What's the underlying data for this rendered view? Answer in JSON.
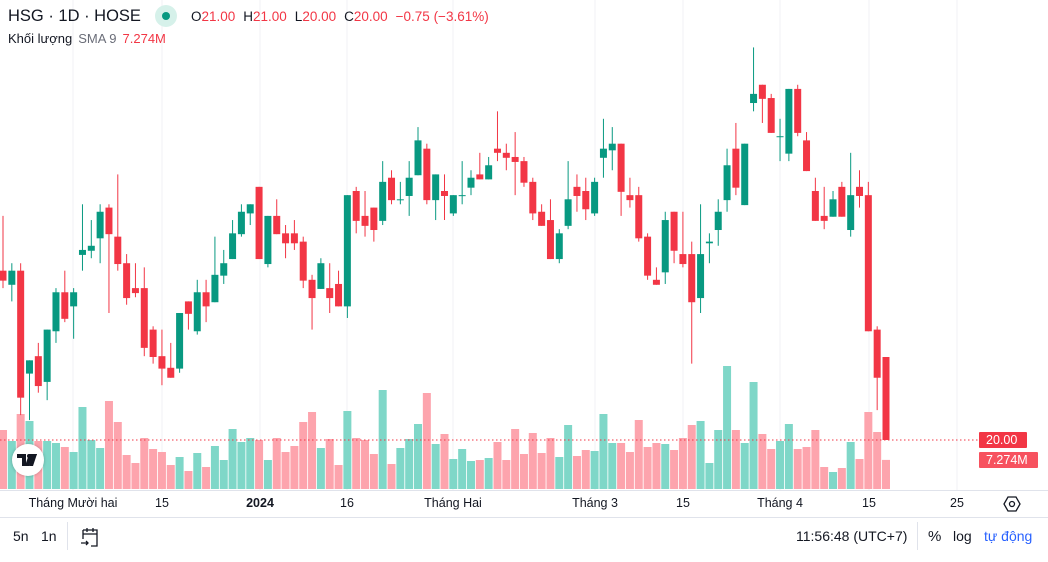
{
  "header": {
    "symbol": "HSG · 1D · HOSE",
    "o_label": "O",
    "o": "21.00",
    "h_label": "H",
    "h": "21.00",
    "l_label": "L",
    "l": "20.00",
    "c_label": "C",
    "c": "20.00",
    "change": "−0.75 (−3.61%)"
  },
  "volume_legend": {
    "label": "Khối lượng",
    "sma": "SMA 9",
    "value": "7.274M"
  },
  "price_axis": {
    "last_price": "20.00",
    "last_volume": "7.274M"
  },
  "time_axis": [
    "Tháng Mười hai",
    "15",
    "2024",
    "16",
    "Tháng Hai",
    "Tháng 3",
    "15",
    "Tháng 4",
    "15",
    "25"
  ],
  "bottom_bar": {
    "range_5y": "5n",
    "range_1y": "1n",
    "time": "11:56:48 (UTC+7)",
    "percent": "%",
    "log": "log",
    "auto": "tự động"
  },
  "colors": {
    "up": "#089981",
    "down": "#f23645",
    "vol_up": "#7fd7c8",
    "vol_down": "#fda4ad"
  },
  "chart_data": {
    "type": "candlestick",
    "ohlc": [
      [
        22.04,
        22.7,
        21.83,
        21.92
      ],
      [
        21.87,
        22.13,
        21.67,
        22.04
      ],
      [
        22.04,
        22.13,
        20.3,
        20.51
      ],
      [
        20.8,
        20.96,
        20.24,
        20.96
      ],
      [
        21.01,
        21.17,
        20.57,
        20.65
      ],
      [
        20.7,
        21.33,
        20.48,
        21.33
      ],
      [
        21.31,
        21.83,
        21.17,
        21.78
      ],
      [
        21.78,
        22.04,
        21.42,
        21.46
      ],
      [
        21.61,
        21.83,
        21.22,
        21.78
      ],
      [
        22.23,
        22.84,
        22.04,
        22.29
      ],
      [
        22.28,
        22.65,
        22.19,
        22.34
      ],
      [
        22.43,
        22.84,
        22.13,
        22.75
      ],
      [
        22.8,
        22.84,
        21.53,
        22.48
      ],
      [
        22.45,
        23.2,
        22.04,
        22.12
      ],
      [
        22.13,
        22.24,
        21.63,
        21.71
      ],
      [
        21.83,
        22.13,
        21.72,
        21.77
      ],
      [
        21.83,
        22.08,
        21.01,
        21.11
      ],
      [
        21.33,
        21.37,
        20.92,
        21.0
      ],
      [
        21.01,
        21.33,
        20.66,
        20.86
      ],
      [
        20.87,
        21.17,
        20.75,
        20.75
      ],
      [
        20.86,
        21.53,
        20.81,
        21.53
      ],
      [
        21.67,
        21.67,
        21.33,
        21.52
      ],
      [
        21.31,
        21.93,
        21.27,
        21.78
      ],
      [
        21.78,
        21.93,
        21.42,
        21.61
      ],
      [
        21.66,
        22.45,
        21.66,
        21.99
      ],
      [
        21.98,
        22.29,
        21.88,
        22.13
      ],
      [
        22.18,
        22.65,
        22.18,
        22.49
      ],
      [
        22.48,
        22.84,
        22.45,
        22.75
      ],
      [
        22.73,
        22.84,
        22.59,
        22.84
      ],
      [
        23.05,
        23.05,
        22.18,
        22.18
      ],
      [
        22.12,
        22.7,
        22.08,
        22.7
      ],
      [
        22.7,
        22.9,
        22.48,
        22.48
      ],
      [
        22.49,
        22.59,
        22.19,
        22.37
      ],
      [
        22.49,
        22.65,
        22.29,
        22.37
      ],
      [
        22.39,
        22.45,
        21.83,
        21.92
      ],
      [
        21.93,
        21.99,
        21.33,
        21.71
      ],
      [
        21.82,
        22.19,
        21.82,
        22.13
      ],
      [
        21.83,
        22.13,
        21.53,
        21.71
      ],
      [
        21.88,
        22.04,
        21.61,
        21.61
      ],
      [
        21.61,
        22.95,
        21.47,
        22.95
      ],
      [
        23.0,
        23.05,
        22.49,
        22.64
      ],
      [
        22.7,
        23.0,
        22.45,
        22.58
      ],
      [
        22.8,
        22.8,
        22.39,
        22.53
      ],
      [
        22.64,
        23.36,
        22.59,
        23.11
      ],
      [
        23.16,
        23.25,
        22.84,
        22.89
      ],
      [
        22.89,
        23.11,
        22.84,
        22.9
      ],
      [
        22.94,
        23.36,
        22.7,
        23.16
      ],
      [
        23.19,
        23.77,
        23.19,
        23.61
      ],
      [
        23.51,
        23.57,
        22.84,
        22.89
      ],
      [
        22.89,
        23.2,
        22.65,
        23.2
      ],
      [
        23.0,
        23.2,
        22.65,
        22.94
      ],
      [
        22.73,
        22.95,
        22.7,
        22.95
      ],
      [
        22.94,
        23.36,
        22.84,
        22.95
      ],
      [
        23.04,
        23.25,
        22.95,
        23.16
      ],
      [
        23.2,
        23.46,
        23.14,
        23.14
      ],
      [
        23.14,
        23.41,
        23.14,
        23.31
      ],
      [
        23.51,
        23.96,
        23.36,
        23.46
      ],
      [
        23.46,
        23.57,
        23.25,
        23.4
      ],
      [
        23.41,
        23.71,
        22.95,
        23.35
      ],
      [
        23.36,
        23.41,
        23.05,
        23.1
      ],
      [
        23.11,
        23.16,
        22.65,
        22.73
      ],
      [
        22.75,
        22.84,
        22.58,
        22.58
      ],
      [
        22.65,
        22.9,
        22.18,
        22.18
      ],
      [
        22.18,
        22.54,
        22.13,
        22.49
      ],
      [
        22.58,
        23.36,
        22.54,
        22.9
      ],
      [
        23.05,
        23.2,
        22.75,
        22.94
      ],
      [
        23.0,
        23.16,
        22.65,
        22.78
      ],
      [
        22.73,
        23.16,
        22.7,
        23.11
      ],
      [
        23.4,
        23.87,
        23.16,
        23.51
      ],
      [
        23.49,
        23.77,
        23.25,
        23.57
      ],
      [
        23.57,
        23.57,
        22.7,
        22.99
      ],
      [
        22.95,
        23.16,
        22.8,
        22.89
      ],
      [
        22.95,
        23.05,
        22.39,
        22.43
      ],
      [
        22.45,
        22.49,
        21.93,
        21.98
      ],
      [
        21.93,
        22.08,
        21.87,
        21.87
      ],
      [
        22.02,
        22.75,
        21.88,
        22.65
      ],
      [
        22.75,
        22.75,
        22.13,
        22.28
      ],
      [
        22.24,
        22.75,
        22.08,
        22.12
      ],
      [
        22.24,
        22.39,
        20.92,
        21.66
      ],
      [
        21.71,
        22.84,
        21.53,
        22.24
      ],
      [
        22.37,
        22.49,
        22.13,
        22.39
      ],
      [
        22.53,
        22.9,
        22.34,
        22.75
      ],
      [
        22.89,
        23.51,
        22.75,
        23.31
      ],
      [
        23.51,
        23.82,
        22.95,
        23.04
      ],
      [
        22.83,
        23.57,
        22.83,
        23.57
      ],
      [
        24.06,
        24.73,
        23.96,
        24.17
      ],
      [
        24.28,
        24.28,
        23.82,
        24.11
      ],
      [
        24.12,
        24.17,
        23.7,
        23.7
      ],
      [
        23.65,
        23.87,
        23.36,
        23.66
      ],
      [
        23.45,
        24.23,
        23.36,
        24.23
      ],
      [
        24.23,
        24.28,
        23.66,
        23.7
      ],
      [
        23.61,
        23.71,
        23.24,
        23.24
      ],
      [
        23.0,
        23.16,
        22.64,
        22.64
      ],
      [
        22.7,
        23.05,
        22.54,
        22.64
      ],
      [
        22.69,
        23.0,
        22.69,
        22.9
      ],
      [
        23.05,
        23.11,
        22.69,
        22.69
      ],
      [
        22.53,
        23.46,
        22.45,
        22.95
      ],
      [
        23.05,
        23.25,
        22.8,
        22.94
      ],
      [
        22.95,
        23.11,
        21.31,
        21.31
      ],
      [
        21.33,
        21.37,
        20.36,
        20.75
      ],
      [
        21.0,
        21.0,
        20.0,
        20.0
      ]
    ],
    "volume_millions": [
      14.75,
      12.0,
      18.75,
      17.0,
      12.0,
      12.0,
      11.5,
      10.5,
      9.25,
      20.5,
      12.25,
      10.25,
      22.0,
      16.75,
      8.5,
      6.5,
      12.75,
      10.0,
      9.25,
      6.0,
      8.0,
      4.5,
      9.0,
      5.5,
      10.75,
      7.25,
      15.0,
      11.75,
      12.75,
      12.25,
      7.25,
      12.75,
      9.25,
      10.75,
      16.75,
      19.25,
      10.25,
      12.5,
      6.0,
      19.5,
      12.75,
      12.25,
      8.75,
      24.75,
      6.25,
      10.25,
      12.5,
      16.25,
      24.0,
      11.25,
      13.75,
      7.5,
      10.0,
      7.0,
      7.25,
      7.75,
      11.75,
      7.25,
      15.0,
      8.75,
      14.0,
      9.0,
      12.75,
      8.0,
      16.0,
      8.25,
      9.75,
      9.5,
      18.75,
      11.5,
      11.5,
      9.25,
      17.25,
      10.5,
      11.5,
      11.25,
      9.75,
      12.75,
      16.0,
      17.0,
      6.5,
      14.75,
      30.75,
      14.75,
      11.5,
      26.75,
      13.75,
      10.0,
      12.0,
      16.25,
      10.0,
      10.5,
      14.75,
      5.5,
      4.25,
      5.25,
      11.75,
      7.5,
      19.25,
      14.25,
      7.274
    ],
    "last_price": 20.0,
    "ylabel": "",
    "xlabel": ""
  }
}
